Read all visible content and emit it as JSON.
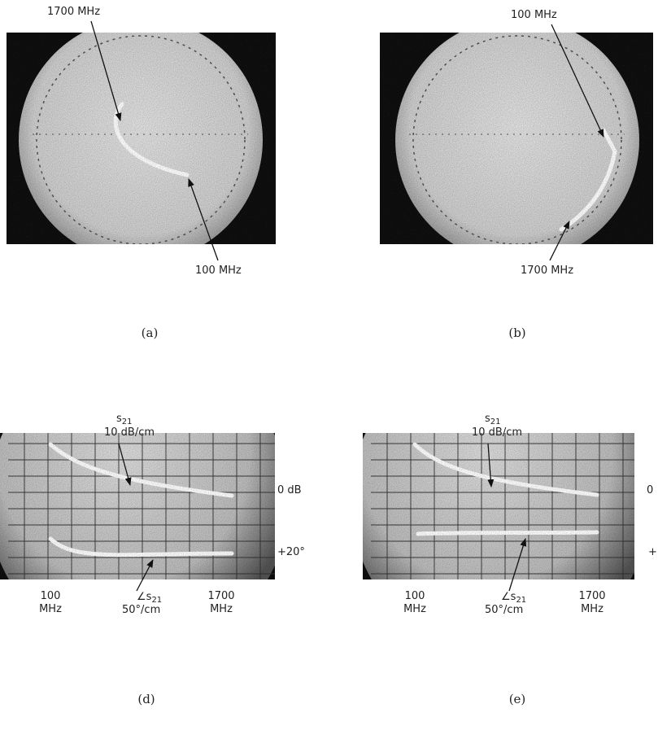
{
  "panels": [
    {
      "label": "(a)",
      "annotations": [
        "1700 MHz",
        "100 MHz"
      ]
    },
    {
      "label": "(b)",
      "annotations": [
        "100 MHz",
        "1700 MHz"
      ]
    },
    {
      "label": "(d)",
      "magnitude": {
        "symbol": "s",
        "subscript": "21",
        "scale": "10 dB/cm"
      },
      "phase": {
        "symbol": "∠s",
        "subscript": "21",
        "scale": "50°/cm"
      },
      "reference_magnitude": "0 dB",
      "reference_phase": "+20°",
      "start": [
        "100",
        "MHz"
      ],
      "stop": [
        "1700",
        "MHz"
      ]
    },
    {
      "label": "(e)",
      "magnitude": {
        "symbol": "s",
        "subscript": "21",
        "scale": "10 dB/cm"
      },
      "phase": {
        "symbol": "∠s",
        "subscript": "21",
        "scale": "50°/cm"
      },
      "reference_magnitude": "0",
      "reference_phase": "+",
      "start": [
        "100",
        "MHz"
      ],
      "stop": [
        "1700",
        "MHz"
      ]
    }
  ]
}
